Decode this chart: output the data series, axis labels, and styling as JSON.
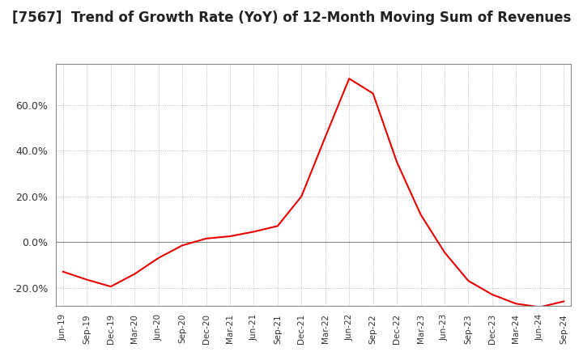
{
  "title": "[7567]  Trend of Growth Rate (YoY) of 12-Month Moving Sum of Revenues",
  "title_fontsize": 12,
  "line_color": "#e80000",
  "background_color": "#ffffff",
  "grid_color": "#aaaaaa",
  "x_labels": [
    "Jun-19",
    "Sep-19",
    "Dec-19",
    "Mar-20",
    "Jun-20",
    "Sep-20",
    "Dec-20",
    "Mar-21",
    "Jun-21",
    "Sep-21",
    "Dec-21",
    "Mar-22",
    "Jun-22",
    "Sep-22",
    "Dec-22",
    "Mar-23",
    "Jun-23",
    "Sep-23",
    "Dec-23",
    "Mar-24",
    "Jun-24",
    "Sep-24"
  ],
  "y_values": [
    -13.0,
    -16.5,
    -19.5,
    -14.0,
    -7.0,
    -1.5,
    1.5,
    2.5,
    4.5,
    7.0,
    20.0,
    46.0,
    71.5,
    65.0,
    35.0,
    12.0,
    -4.5,
    -17.0,
    -23.0,
    -27.0,
    -28.5,
    -26.0
  ],
  "ylim": [
    -28,
    78
  ],
  "yticks": [
    -20.0,
    0.0,
    20.0,
    40.0,
    60.0
  ],
  "zero_line_color": "#888888",
  "spine_color": "#888888"
}
